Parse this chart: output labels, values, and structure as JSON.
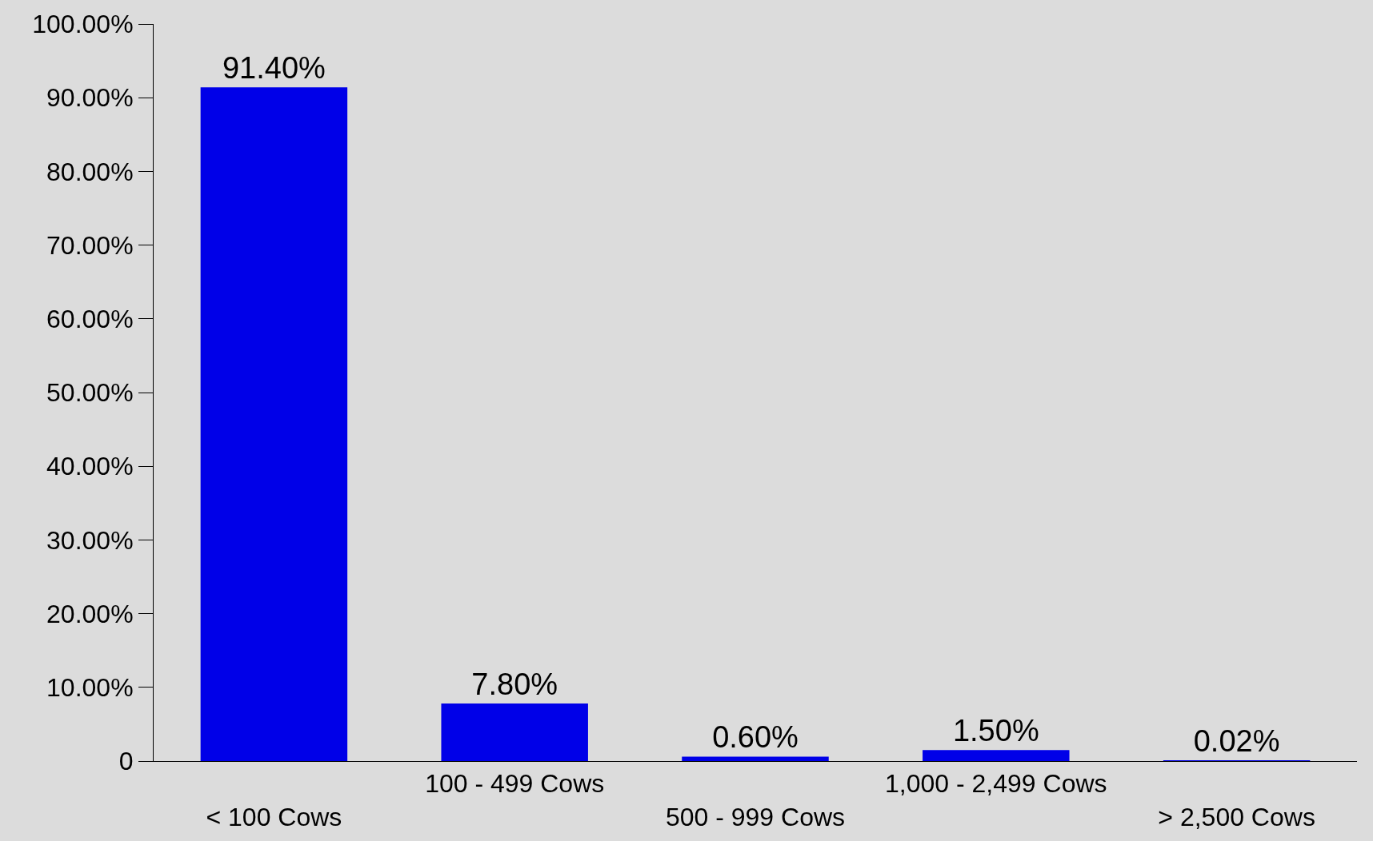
{
  "chart_data": {
    "type": "bar",
    "categories": [
      "< 100 Cows",
      "100 - 499 Cows",
      "500 - 999 Cows",
      "1,000 - 2,499 Cows",
      "> 2,500 Cows"
    ],
    "values": [
      91.4,
      7.8,
      0.6,
      1.5,
      0.02
    ],
    "value_labels": [
      "91.40%",
      "7.80%",
      "0.60%",
      "1.50%",
      "0.02%"
    ],
    "color": "#0000e8",
    "ylim": [
      0,
      100
    ],
    "yticks": [
      0,
      {
        "value": 10,
        "label": "10.00%"
      },
      {
        "value": 20,
        "label": "20.00%"
      },
      {
        "value": 30,
        "label": "30.00%"
      },
      {
        "value": 40,
        "label": "40.00%"
      },
      {
        "value": 50,
        "label": "50.00%"
      },
      {
        "value": 60,
        "label": "60.00%"
      },
      {
        "value": 70,
        "label": "70.00%"
      },
      {
        "value": 80,
        "label": "80.00%"
      },
      {
        "value": 90,
        "label": "90.00%"
      },
      {
        "value": 100,
        "label": "100.00%"
      }
    ],
    "grid": false,
    "legend": false
  }
}
